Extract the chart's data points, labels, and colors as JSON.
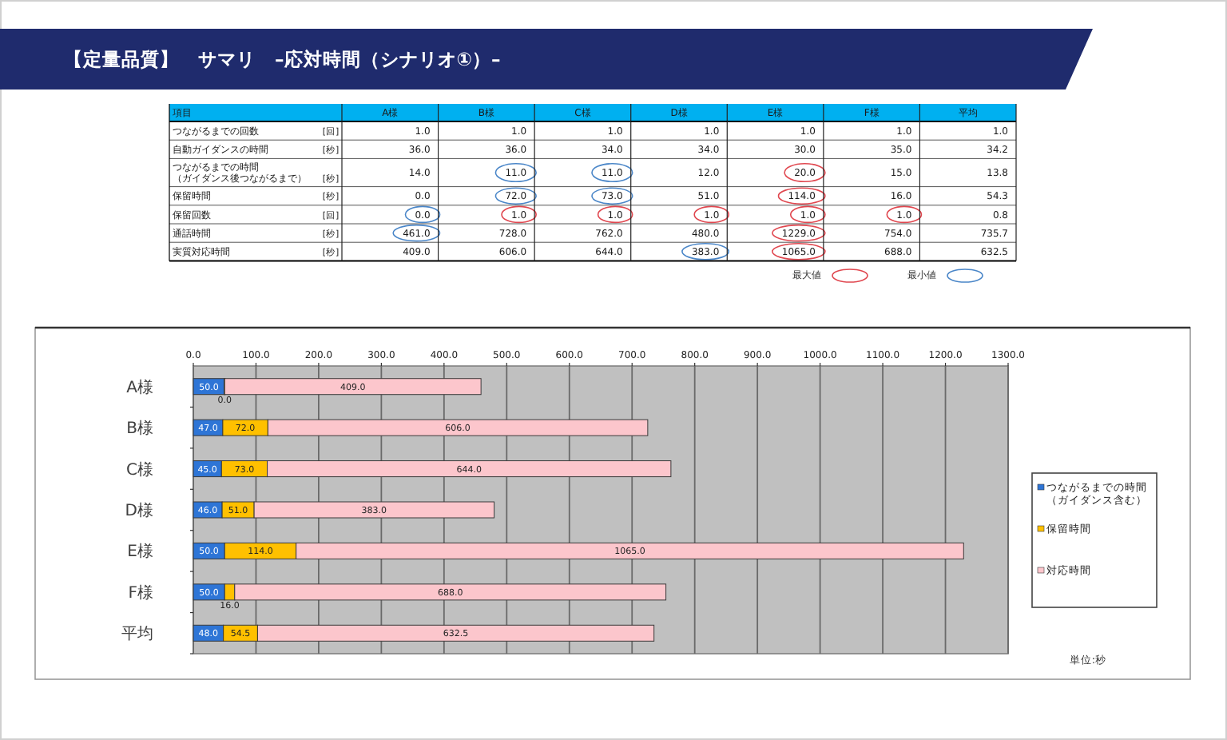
{
  "chart_data": [
    {
      "type": "other",
      "title": "【定量品質】　サマリ　–応対時間（シナリオ①）–",
      "ylabel": "項目",
      "categories": [
        "A様",
        "B様",
        "C様",
        "D様",
        "E様",
        "F様",
        "平均"
      ],
      "y_categories": [
        "つながるまでの回数",
        "自動ガイダンスの時間",
        "つながるまでの時間（ガイダンス後つながるまで）",
        "保留時間",
        "保留回数",
        "通話時間",
        "実質対応時間"
      ],
      "y2_categories": [
        "[回]",
        "[秒]",
        "[秒]",
        "[秒]",
        "[回]",
        "[秒]",
        "[秒]"
      ],
      "cells": [
        [
          "1.0",
          "1.0",
          "1.0",
          "1.0",
          "1.0",
          "1.0",
          "1.0"
        ],
        [
          "36.0",
          "36.0",
          "34.0",
          "34.0",
          "30.0",
          "35.0",
          "34.2"
        ],
        [
          "14.0",
          "11.0",
          "11.0",
          "12.0",
          "20.0",
          "15.0",
          "13.8"
        ],
        [
          "0.0",
          "72.0",
          "73.0",
          "51.0",
          "114.0",
          "16.0",
          "54.3"
        ],
        [
          "0.0",
          "1.0",
          "1.0",
          "1.0",
          "1.0",
          "1.0",
          "0.8"
        ],
        [
          "461.0",
          "728.0",
          "762.0",
          "480.0",
          "1229.0",
          "754.0",
          "735.7"
        ],
        [
          "409.0",
          "606.0",
          "644.0",
          "383.0",
          "1065.0",
          "688.0",
          "632.5"
        ]
      ],
      "data_labels": true,
      "colors": [
        [
          null,
          null,
          null,
          null,
          null,
          null,
          null
        ],
        [
          null,
          null,
          null,
          null,
          null,
          null,
          null
        ],
        [
          null,
          "#4a86c8",
          "#4a86c8",
          null,
          "#e0474f",
          null,
          null
        ],
        [
          null,
          "#4a86c8",
          "#4a86c8",
          null,
          "#e0474f",
          null,
          null
        ],
        [
          "#4a86c8",
          "#e0474f",
          "#e0474f",
          "#e0474f",
          "#e0474f",
          "#e0474f",
          null
        ],
        [
          "#4a86c8",
          null,
          null,
          null,
          "#e0474f",
          null,
          null
        ],
        [
          null,
          null,
          null,
          "#4a86c8",
          "#e0474f",
          null,
          null
        ]
      ],
      "annotations": [
        "最大値",
        "最小値"
      ]
    },
    {
      "type": "bar",
      "orientation": "horizontal",
      "stacked": true,
      "categories": [
        "A様",
        "B様",
        "C様",
        "D様",
        "E様",
        "F様",
        "平均"
      ],
      "series": [
        {
          "name": "つながるまでの時間（ガイダンス含む）",
          "color": "#2e75d6",
          "values": [
            50.0,
            47.0,
            45.0,
            46.0,
            50.0,
            50.0,
            48.0
          ],
          "value_labels": [
            "50.0",
            "47.0",
            "45.0",
            "46.0",
            "50.0",
            "50.0",
            "48.0"
          ]
        },
        {
          "name": "保留時間",
          "color": "#ffc000",
          "values": [
            0.0,
            72.0,
            73.0,
            51.0,
            114.0,
            16.0,
            54.5
          ],
          "value_labels": [
            "0.0",
            "72.0",
            "73.0",
            "51.0",
            "114.0",
            "16.0",
            "54.5"
          ]
        },
        {
          "name": "対応時間",
          "color": "#fcc6cc",
          "values": [
            409.0,
            606.0,
            644.0,
            383.0,
            1065.0,
            688.0,
            632.5
          ],
          "value_labels": [
            "409.0",
            "606.0",
            "644.0",
            "383.0",
            "1065.0",
            "688.0",
            "632.5"
          ]
        }
      ],
      "xlim": [
        0,
        1300
      ],
      "xticks": [
        {
          "value": 0,
          "label": "0.0"
        },
        {
          "value": 100,
          "label": "100.0"
        },
        {
          "value": 200,
          "label": "200.0"
        },
        {
          "value": 300,
          "label": "300.0"
        },
        {
          "value": 400,
          "label": "400.0"
        },
        {
          "value": 500,
          "label": "500.0"
        },
        {
          "value": 600,
          "label": "600.0"
        },
        {
          "value": 700,
          "label": "700.0"
        },
        {
          "value": 800,
          "label": "800.0"
        },
        {
          "value": 900,
          "label": "900.0"
        },
        {
          "value": 1000,
          "label": "1000.0"
        },
        {
          "value": 1100,
          "label": "1100.0"
        },
        {
          "value": 1200,
          "label": "1200.0"
        },
        {
          "value": 1300,
          "label": "1300.0"
        }
      ],
      "grid": "x",
      "legend": "right",
      "annotations": [
        "単位:秒"
      ]
    }
  ]
}
